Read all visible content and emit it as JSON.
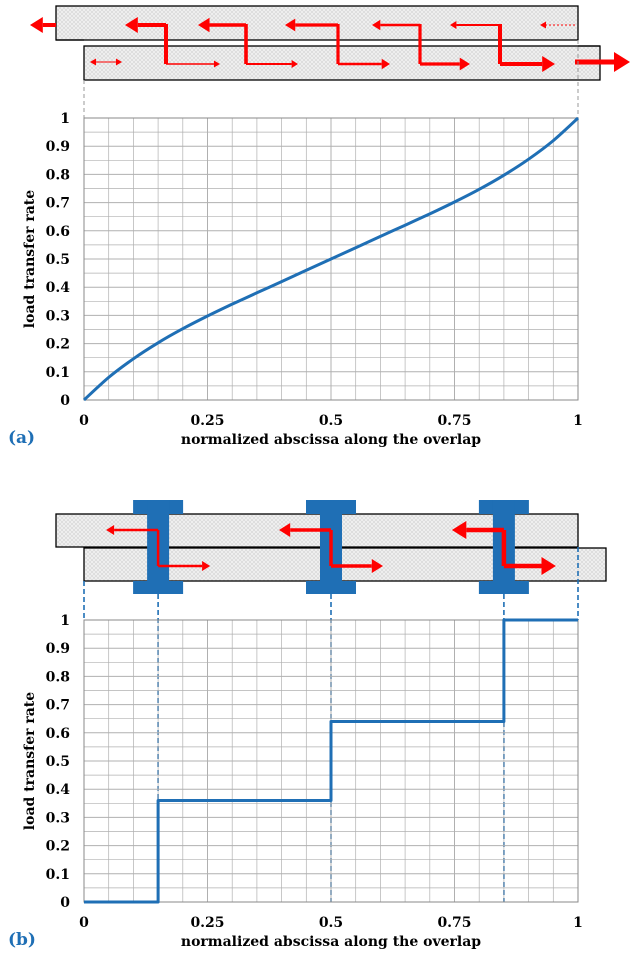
{
  "panel_labels": [
    "(a)",
    "(b)"
  ],
  "colors": {
    "curve": "#1f6fb5",
    "arrow": "#ff0000",
    "fastener": "#1f6fb5",
    "grid": "#b0b0b0",
    "plate_fill": "#eeeeee"
  },
  "chart_data": [
    {
      "type": "line",
      "panel": "(a)",
      "xlabel": "normalized abscissa along the overlap",
      "ylabel": "load transfer rate",
      "xlim": [
        0,
        1
      ],
      "ylim": [
        0,
        1
      ],
      "xticks": [
        "0",
        "0.25",
        "0.5",
        "0.75",
        "1"
      ],
      "yticks": [
        "0",
        "0.1",
        "0.2",
        "0.3",
        "0.4",
        "0.5",
        "0.6",
        "0.7",
        "0.8",
        "0.9",
        "1"
      ],
      "grid": true,
      "x": [
        0,
        0.05,
        0.1,
        0.15,
        0.2,
        0.25,
        0.3,
        0.35,
        0.4,
        0.45,
        0.5,
        0.55,
        0.6,
        0.65,
        0.7,
        0.75,
        0.8,
        0.85,
        0.9,
        0.95,
        1
      ],
      "y": [
        0,
        0.08,
        0.146,
        0.203,
        0.253,
        0.298,
        0.34,
        0.38,
        0.42,
        0.46,
        0.5,
        0.54,
        0.58,
        0.62,
        0.66,
        0.702,
        0.747,
        0.797,
        0.854,
        0.92,
        1
      ]
    },
    {
      "type": "line",
      "panel": "(b)",
      "xlabel": "normalized abscissa along the overlap",
      "ylabel": "load transfer rate",
      "xlim": [
        0,
        1
      ],
      "ylim": [
        0,
        1
      ],
      "xticks": [
        "0",
        "0.25",
        "0.5",
        "0.75",
        "1"
      ],
      "yticks": [
        "0",
        "0.1",
        "0.2",
        "0.3",
        "0.4",
        "0.5",
        "0.6",
        "0.7",
        "0.8",
        "0.9",
        "1"
      ],
      "grid": true,
      "step": true,
      "x": [
        0,
        0.15,
        0.15,
        0.5,
        0.5,
        0.85,
        0.85,
        1
      ],
      "y": [
        0,
        0,
        0.36,
        0.36,
        0.64,
        0.64,
        1,
        1
      ],
      "fastener_positions": [
        0.15,
        0.5,
        0.85
      ]
    }
  ]
}
